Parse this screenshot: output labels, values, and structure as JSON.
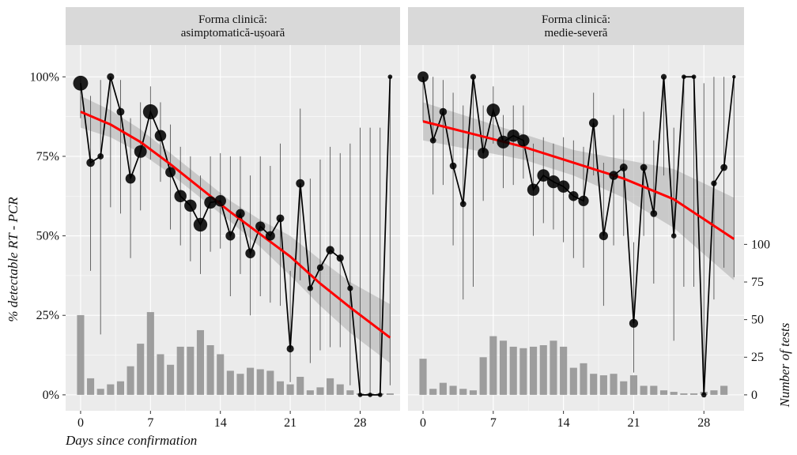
{
  "chart_data": [
    {
      "type": "line",
      "panel_title": [
        "Forma clinică:",
        "asimptomatică-ușoară"
      ],
      "xlabel": "Days since confirmation",
      "ylabel": "% detectable RT - PCR",
      "xlim": [
        -1.5,
        32
      ],
      "ylim": [
        -5,
        110
      ],
      "x_ticks": [
        0,
        7,
        14,
        21,
        28
      ],
      "y_ticks": [
        0,
        25,
        50,
        75,
        100
      ],
      "y_tick_labels": [
        "0%",
        "25%",
        "50%",
        "75%",
        "100%"
      ],
      "secondary_ylabel": "Number of tests",
      "secondary_ticks": [
        0,
        25,
        50,
        75,
        100
      ],
      "line_color": "#000000",
      "fit_color": "#ff0000",
      "ribbon_color": "#b3b3b3",
      "bar_color": "#999999",
      "x": [
        0,
        1,
        2,
        3,
        4,
        5,
        6,
        7,
        8,
        9,
        10,
        11,
        12,
        13,
        14,
        15,
        16,
        17,
        18,
        19,
        20,
        21,
        22,
        23,
        24,
        25,
        26,
        27,
        28,
        29,
        30,
        31
      ],
      "pct": [
        98,
        73,
        75,
        100,
        89,
        68,
        76.5,
        89,
        81.5,
        70,
        62.5,
        59.5,
        53.5,
        60.5,
        61,
        50,
        57,
        44.5,
        53,
        50,
        55.5,
        14.5,
        66.5,
        33.5,
        40,
        45.5,
        43,
        33.5,
        0,
        0,
        0,
        100
      ],
      "ci_low": [
        87,
        39,
        19,
        59,
        57,
        43,
        58,
        74,
        67,
        52,
        47,
        42,
        38,
        45,
        46,
        31,
        38,
        25,
        31,
        29,
        28,
        4,
        36,
        10,
        14,
        15,
        15,
        3,
        0,
        0,
        0,
        3
      ],
      "ci_high": [
        100,
        94,
        99,
        100,
        99,
        87,
        92,
        97,
        92,
        85,
        78,
        75,
        69,
        75,
        76,
        75,
        75,
        69,
        75,
        72,
        79,
        39,
        90,
        68,
        74,
        78,
        76,
        79,
        84,
        84,
        84,
        100
      ],
      "n_tests": [
        53,
        11,
        4,
        7,
        9,
        19,
        34,
        55,
        27,
        20,
        32,
        32,
        43,
        33,
        27,
        16,
        14,
        18,
        17,
        16,
        9,
        7,
        12,
        3,
        5,
        11,
        7,
        3,
        1,
        1,
        1,
        1
      ],
      "fit_x": [
        0,
        3,
        6,
        9,
        12,
        15,
        18,
        21,
        24,
        27,
        31
      ],
      "fit_y": [
        89,
        85,
        79.5,
        72.5,
        65,
        57.5,
        50.5,
        43.5,
        35,
        27.5,
        18
      ],
      "fit_low": [
        84,
        81,
        76,
        69.5,
        62,
        54.5,
        46.5,
        37.5,
        28,
        19.5,
        10
      ],
      "fit_high": [
        94,
        89.5,
        83.5,
        76,
        68.5,
        61,
        55,
        50,
        42.5,
        35.5,
        28.5
      ]
    },
    {
      "type": "line",
      "panel_title": [
        "Forma clinică:",
        "medie-severă"
      ],
      "xlim": [
        -1.5,
        32
      ],
      "ylim": [
        -5,
        110
      ],
      "x_ticks": [
        0,
        7,
        14,
        21,
        28
      ],
      "secondary_ticks": [
        0,
        25,
        50,
        75,
        100
      ],
      "x": [
        0,
        1,
        2,
        3,
        4,
        5,
        6,
        7,
        8,
        9,
        10,
        11,
        12,
        13,
        14,
        15,
        16,
        17,
        18,
        19,
        20,
        21,
        22,
        23,
        24,
        25,
        26,
        27,
        28,
        29,
        30,
        31
      ],
      "pct": [
        100,
        80,
        89,
        72,
        60,
        100,
        76,
        89.5,
        79.5,
        81.5,
        80,
        64.5,
        69,
        67,
        65.5,
        62.5,
        61,
        85.5,
        50,
        69,
        71.5,
        22.5,
        71.5,
        57,
        100,
        50,
        100,
        100,
        0,
        66.5,
        71.5,
        100
      ],
      "ci_low": [
        86,
        63,
        66,
        47,
        30,
        34,
        61,
        79,
        65,
        66,
        68,
        50,
        54,
        52,
        48,
        43,
        40,
        69,
        28,
        47,
        50,
        7,
        50,
        35,
        69,
        17,
        34,
        34,
        0,
        30,
        40,
        37
      ],
      "ci_high": [
        100,
        100,
        99,
        95,
        91,
        100,
        91,
        97,
        88,
        91,
        91,
        79,
        81,
        79,
        81,
        80,
        78,
        95,
        73,
        88,
        90,
        48,
        89,
        80,
        100,
        84,
        100,
        100,
        98,
        100,
        100,
        100
      ],
      "n_tests": [
        24,
        4,
        8,
        6,
        4,
        3,
        25,
        39,
        36,
        32,
        31,
        32,
        33,
        36,
        32,
        18,
        21,
        14,
        13,
        14,
        9,
        13,
        6,
        6,
        3,
        2,
        1,
        1,
        2,
        3,
        6,
        0
      ],
      "fit_x": [
        0,
        5,
        10,
        15,
        20,
        25,
        31
      ],
      "fit_y": [
        86,
        82,
        78,
        73,
        68,
        61.5,
        49
      ],
      "fit_low": [
        80,
        77,
        74,
        69,
        62,
        52.5,
        36
      ],
      "fit_high": [
        92,
        87,
        82,
        77,
        74,
        71,
        62
      ]
    }
  ]
}
